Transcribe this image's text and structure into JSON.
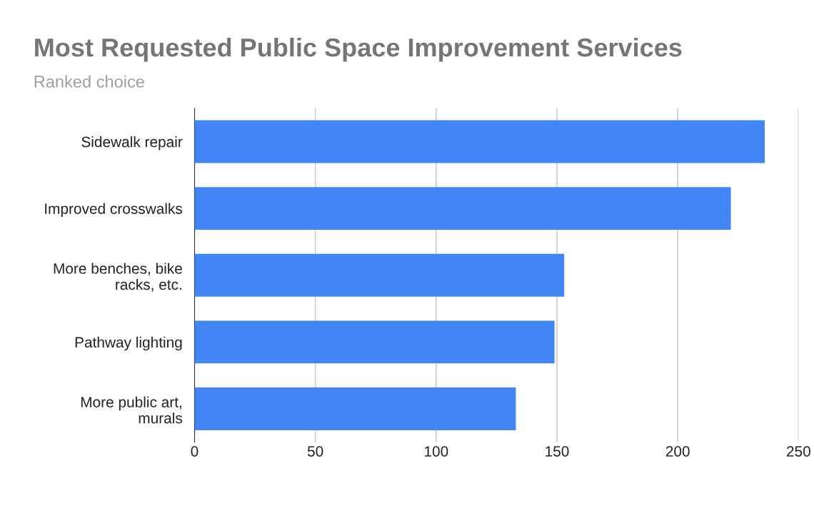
{
  "chart_data": {
    "type": "bar",
    "orientation": "horizontal",
    "title": "Most Requested Public Space Improvement Services",
    "subtitle": "Ranked choice",
    "categories": [
      "Sidewalk repair",
      "Improved crosswalks",
      "More benches, bike\nracks, etc.",
      "Pathway lighting",
      "More public art,\nmurals"
    ],
    "values": [
      236,
      222,
      153,
      149,
      133
    ],
    "color": "#4285f4",
    "xlim": [
      0,
      250
    ],
    "xticks": [
      0,
      50,
      100,
      150,
      200,
      250
    ],
    "grid": "x"
  }
}
